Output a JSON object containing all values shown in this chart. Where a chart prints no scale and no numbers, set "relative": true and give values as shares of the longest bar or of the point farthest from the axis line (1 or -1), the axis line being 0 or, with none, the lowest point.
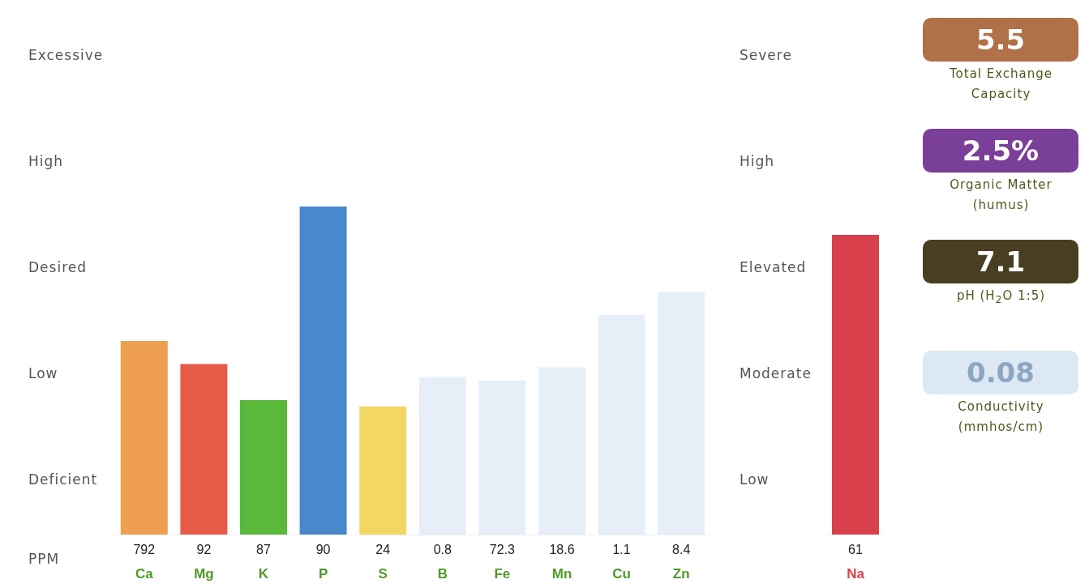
{
  "chart_data": [
    {
      "type": "bar",
      "relative": true,
      "xlabel": "PPM",
      "categories": [
        "Ca",
        "Mg",
        "K",
        "P",
        "S",
        "B",
        "Fe",
        "Mn",
        "Cu",
        "Zn"
      ],
      "values": [
        0.59,
        0.52,
        0.41,
        1,
        0.39,
        0.48,
        0.47,
        0.51,
        0.67,
        0.74
      ],
      "colors": [
        "#eea050",
        "#e85a48",
        "#5ab83a",
        "#4a88cc",
        "#f2d862",
        "#e6eef8",
        "#e6eef8",
        "#e6eef8",
        "#e6eef8",
        "#e6eef8"
      ],
      "annotations": [
        "Excessive",
        "High",
        "Desired",
        "Low",
        "Deficient",
        "792",
        "92",
        "87",
        "90",
        "24",
        "0.8",
        "72.3",
        "18.6",
        "1.1",
        "8.4"
      ]
    },
    {
      "type": "bar",
      "relative": true,
      "categories": [
        "Na"
      ],
      "values": [
        1
      ],
      "colors": [
        "#d8404c"
      ],
      "annotations": [
        "Severe",
        "High",
        "Elevated",
        "Moderate",
        "Low",
        "61"
      ]
    },
    {
      "type": "other",
      "categories": [
        "Total Exchange Capacity",
        "Organic Matter (humus)",
        "pH (H$_{2}$O 1:5)",
        "Conductivity (mmhos/cm)"
      ],
      "value_labels": [
        "5.5",
        "2.5%",
        "7.1",
        "0.08"
      ],
      "colors": [
        "#b07048",
        "#7a3f98",
        "#4a3e22",
        "#dce8f4"
      ]
    }
  ]
}
